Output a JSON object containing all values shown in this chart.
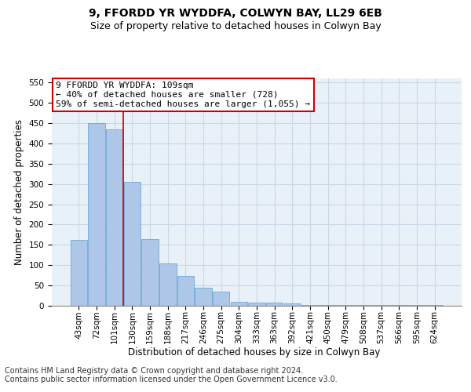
{
  "title": "9, FFORDD YR WYDDFA, COLWYN BAY, LL29 6EB",
  "subtitle": "Size of property relative to detached houses in Colwyn Bay",
  "xlabel": "Distribution of detached houses by size in Colwyn Bay",
  "ylabel": "Number of detached properties",
  "categories": [
    "43sqm",
    "72sqm",
    "101sqm",
    "130sqm",
    "159sqm",
    "188sqm",
    "217sqm",
    "246sqm",
    "275sqm",
    "304sqm",
    "333sqm",
    "363sqm",
    "392sqm",
    "421sqm",
    "450sqm",
    "479sqm",
    "508sqm",
    "537sqm",
    "566sqm",
    "595sqm",
    "624sqm"
  ],
  "values": [
    163,
    450,
    435,
    305,
    165,
    105,
    73,
    44,
    35,
    9,
    7,
    7,
    5,
    1,
    1,
    1,
    1,
    1,
    1,
    1,
    1
  ],
  "bar_color": "#aec6e8",
  "bar_edge_color": "#5a9fd4",
  "red_line_index": 2,
  "annotation_text": "9 FFORDD YR WYDDFA: 109sqm\n← 40% of detached houses are smaller (728)\n59% of semi-detached houses are larger (1,055) →",
  "annotation_box_color": "#ffffff",
  "annotation_box_edge_color": "#cc0000",
  "ylim": [
    0,
    560
  ],
  "yticks": [
    0,
    50,
    100,
    150,
    200,
    250,
    300,
    350,
    400,
    450,
    500,
    550
  ],
  "grid_color": "#c8d8e8",
  "background_color": "#e8f0f8",
  "footer": "Contains HM Land Registry data © Crown copyright and database right 2024.\nContains public sector information licensed under the Open Government Licence v3.0.",
  "title_fontsize": 10,
  "subtitle_fontsize": 9,
  "xlabel_fontsize": 8.5,
  "ylabel_fontsize": 8.5,
  "tick_fontsize": 7.5,
  "annotation_fontsize": 8,
  "footer_fontsize": 7
}
